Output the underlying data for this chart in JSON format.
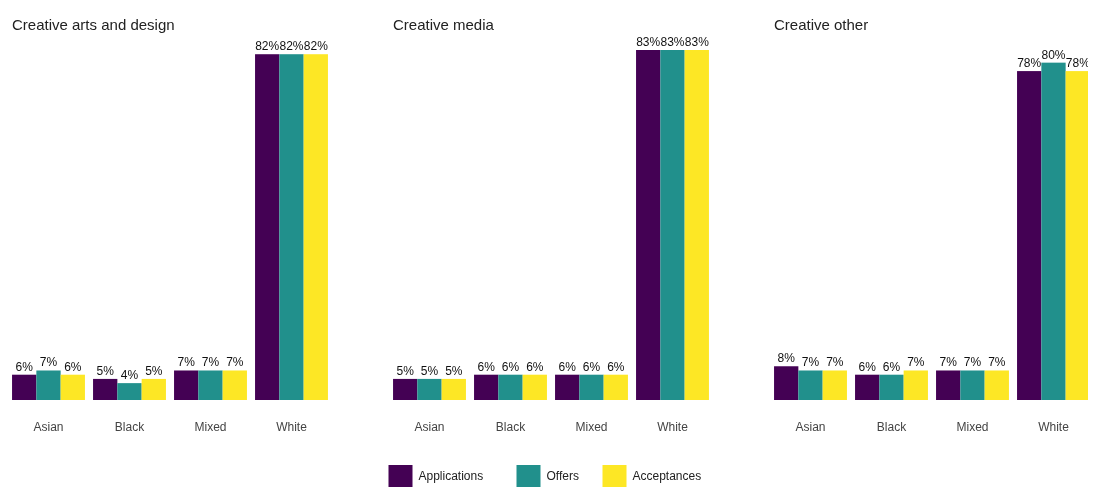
{
  "chart_data": [
    {
      "type": "bar",
      "title": "Creative arts and design",
      "categories": [
        "Asian",
        "Black",
        "Mixed",
        "White"
      ],
      "tick_labels": "x",
      "series": [
        {
          "color": "#440154",
          "values": [
            6,
            5,
            7,
            82
          ],
          "value_labels": [
            "6%",
            "5%",
            "7%",
            "82%"
          ]
        },
        {
          "color": "#21908c",
          "values": [
            7,
            4,
            7,
            82
          ],
          "value_labels": [
            "7%",
            "4%",
            "7%",
            "82%"
          ]
        },
        {
          "color": "#fde725",
          "values": [
            6,
            5,
            7,
            82
          ],
          "value_labels": [
            "6%",
            "5%",
            "7%",
            "82%"
          ]
        }
      ]
    },
    {
      "type": "bar",
      "title": "Creative media",
      "categories": [
        "Asian",
        "Black",
        "Mixed",
        "White"
      ],
      "tick_labels": "x",
      "legend": "bottom",
      "series": [
        {
          "name": "Applications",
          "color": "#440154",
          "values": [
            5,
            6,
            6,
            83
          ],
          "value_labels": [
            "5%",
            "6%",
            "6%",
            "83%"
          ]
        },
        {
          "name": "Offers",
          "color": "#21908c",
          "values": [
            5,
            6,
            6,
            83
          ],
          "value_labels": [
            "5%",
            "6%",
            "6%",
            "83%"
          ]
        },
        {
          "name": "Acceptances",
          "color": "#fde725",
          "values": [
            5,
            6,
            6,
            83
          ],
          "value_labels": [
            "5%",
            "6%",
            "6%",
            "83%"
          ]
        }
      ]
    },
    {
      "type": "bar",
      "title": "Creative other",
      "categories": [
        "Asian",
        "Black",
        "Mixed",
        "White"
      ],
      "tick_labels": "x",
      "series": [
        {
          "color": "#440154",
          "values": [
            8,
            6,
            7,
            78
          ],
          "value_labels": [
            "8%",
            "6%",
            "7%",
            "78%"
          ]
        },
        {
          "color": "#21908c",
          "values": [
            7,
            6,
            7,
            80
          ],
          "value_labels": [
            "7%",
            "6%",
            "7%",
            "80%"
          ]
        },
        {
          "color": "#fde725",
          "values": [
            7,
            7,
            7,
            78
          ],
          "value_labels": [
            "7%",
            "7%",
            "7%",
            "78%"
          ]
        }
      ]
    }
  ]
}
